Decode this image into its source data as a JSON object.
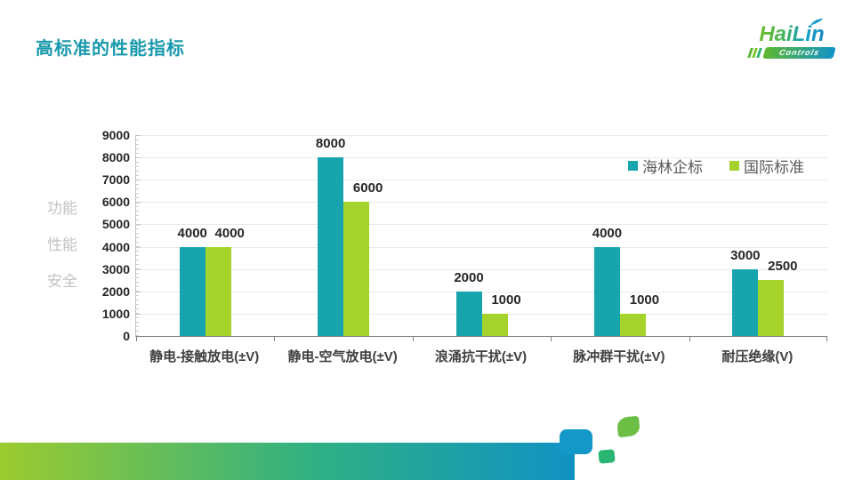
{
  "slide": {
    "title": "高标准的性能指标",
    "side_labels": [
      "功能",
      "性能",
      "安全"
    ]
  },
  "logo": {
    "brand": "HaiLin",
    "subtitle": "Controls",
    "leaf_icon": "leaf-accent"
  },
  "chart_data": {
    "type": "bar",
    "title": "",
    "categories": [
      "静电-接触放电(±V)",
      "静电-空气放电(±V)",
      "浪涌抗干扰(±V)",
      "脉冲群干扰(±V)",
      "耐压绝缘(V)"
    ],
    "series": [
      {
        "name": "海林企标",
        "color": "#18A4AD",
        "values": [
          4000,
          8000,
          2000,
          4000,
          3000
        ]
      },
      {
        "name": "国际标准",
        "color": "#A5D32B",
        "values": [
          4000,
          6000,
          1000,
          1000,
          2500
        ]
      }
    ],
    "ylim": [
      0,
      9000
    ],
    "ytick_step": 1000,
    "ylabel": "功能 性能 安全",
    "grid": true,
    "legend_position": "top-right",
    "data_labels": true
  },
  "colors": {
    "title": "#1899AC",
    "series1": "#18A4AD",
    "series2": "#A5D32B",
    "legend_text": "#595959",
    "axis_line": "#BFC5C9",
    "baseline": "#808080",
    "gridline": "#E6EAEC",
    "side_label": "#C3C3C3",
    "deco_gradient_left": "#9CCB2E",
    "deco_gradient_right": "#1092C4",
    "deco_blue": "#1498C8",
    "deco_seagreen": "#2BB573",
    "deco_green": "#6CBE45"
  }
}
